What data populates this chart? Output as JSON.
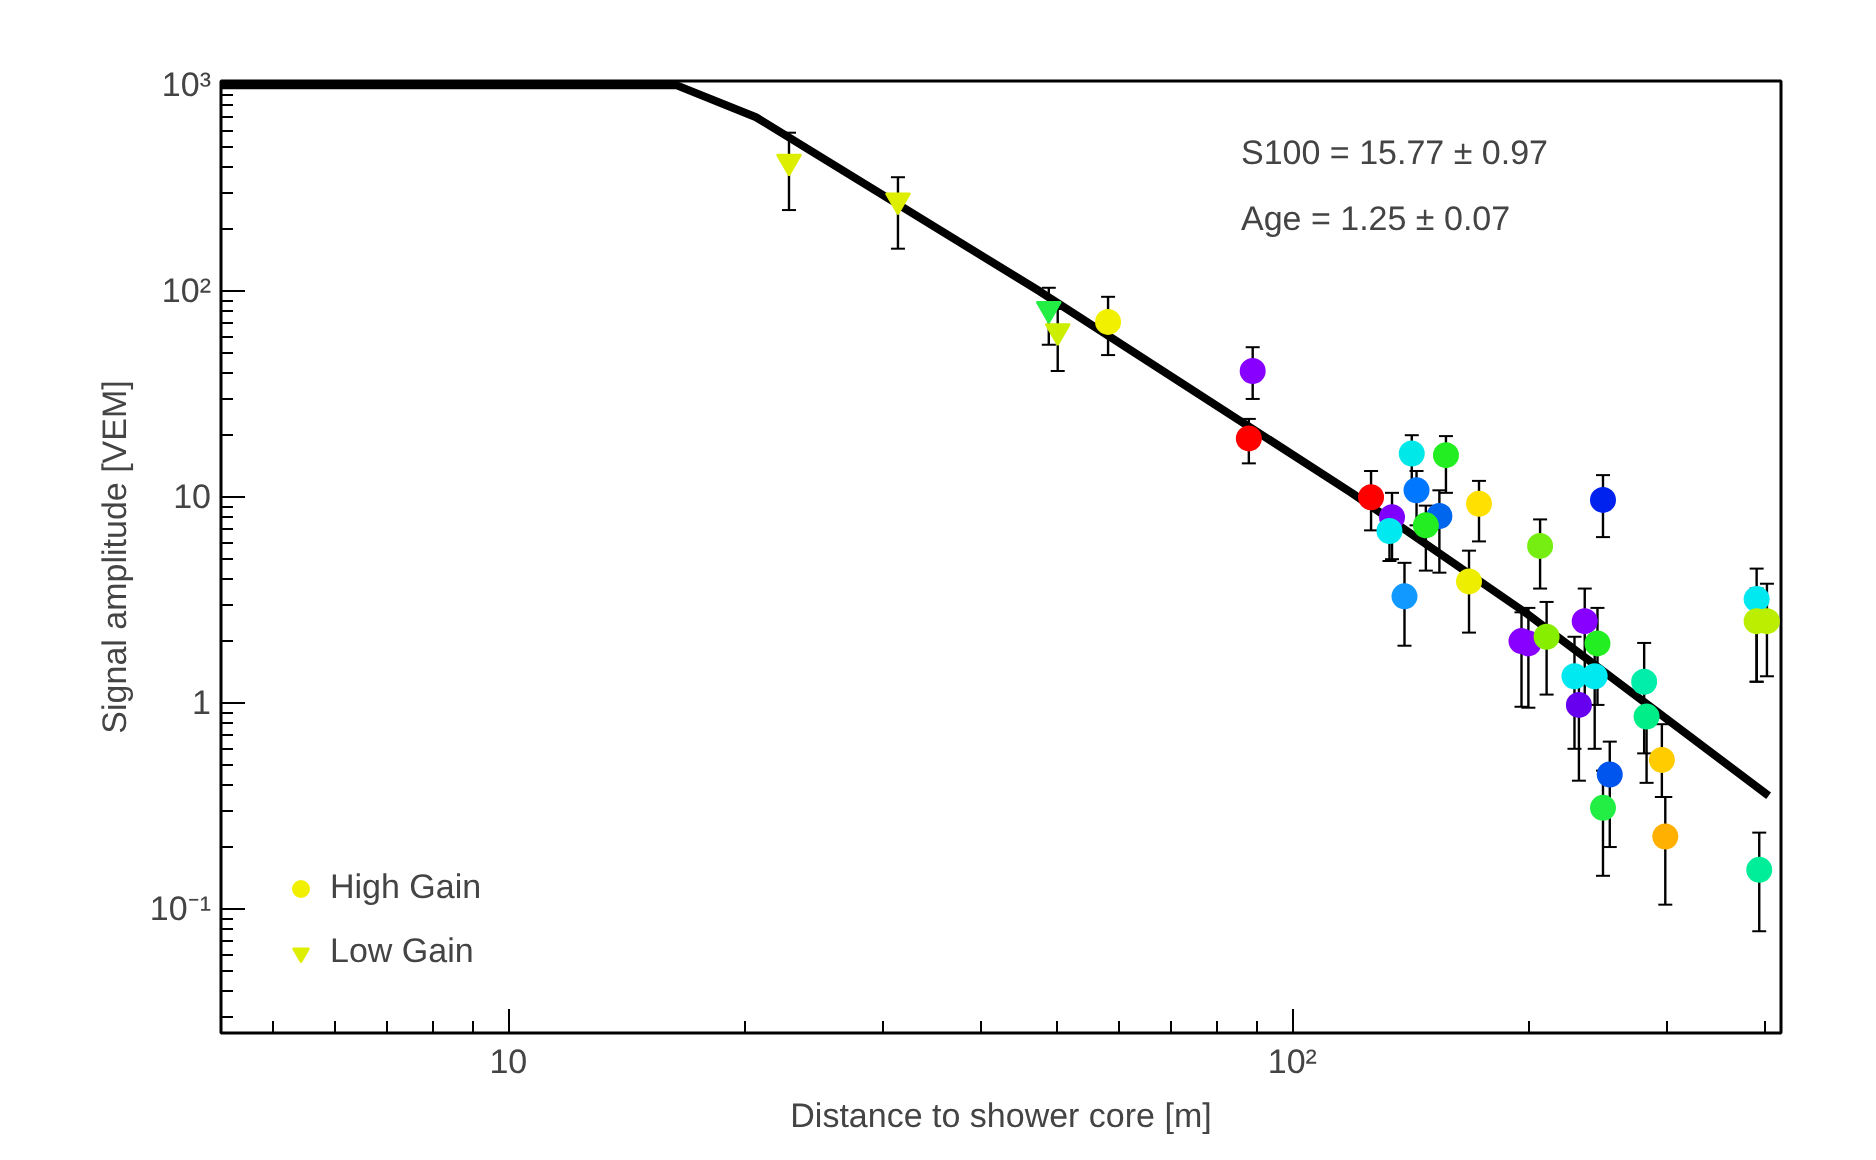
{
  "chart_data": {
    "type": "scatter",
    "xlabel": "Distance to shower core [m]",
    "ylabel": "Signal amplitude [VEM]",
    "log": "xy",
    "grid": false,
    "legend": "bottom left",
    "xlim": [
      4.3,
      420
    ],
    "ylim": [
      0.025,
      1050
    ],
    "xticks": [
      10,
      {
        "value": 100,
        "label": "10²"
      }
    ],
    "yticks": [
      {
        "value": 0.1,
        "label": "10⁻¹"
      },
      1,
      10,
      {
        "value": 100,
        "label": "10²"
      },
      {
        "value": 1000,
        "label": "10³"
      }
    ],
    "annotations": [
      "S100 =  15.77 ± 0.97",
      "Age  =  1.25 ± 0.07"
    ],
    "series": [
      {
        "type": "line",
        "color": "#000000",
        "marker": "none",
        "line_style": "solid",
        "x": [
          4.3,
          16.4,
          20.7,
          47.6,
          119,
          198,
          405
        ],
        "values": [
          1000,
          1000,
          700,
          100,
          10.5,
          2.76,
          0.355
        ]
      },
      {
        "name": "High Gain",
        "marker": "circle",
        "x": [
          58.2,
          89,
          88,
          126,
          134,
          133,
          142,
          157,
          144,
          154,
          148,
          139,
          173,
          168,
          207,
          249,
          196,
          200,
          211,
          236,
          245,
          229,
          243,
          232,
          254,
          249,
          281,
          283,
          296,
          299,
          391,
          391,
          403,
          394
        ],
        "values": [
          71,
          41,
          19.3,
          10,
          8,
          6.85,
          16.3,
          16,
          10.8,
          8.1,
          7.3,
          3.3,
          9.3,
          3.9,
          5.8,
          9.7,
          2,
          1.95,
          2.1,
          2.5,
          1.95,
          1.35,
          1.35,
          0.98,
          0.45,
          0.31,
          1.27,
          0.86,
          0.53,
          0.225,
          3.2,
          2.5,
          2.5,
          0.155
        ],
        "errors": [
          [
            49,
            94
          ],
          [
            30,
            53.5
          ],
          [
            14.6,
            24
          ],
          [
            6.9,
            13.4
          ],
          [
            5,
            10.5
          ],
          [
            4.9,
            8.5
          ],
          [
            11,
            20
          ],
          [
            10.5,
            19.8
          ],
          [
            7.3,
            13.4
          ],
          [
            4.3,
            10.8
          ],
          [
            4.4,
            9.1
          ],
          [
            1.9,
            4.8
          ],
          [
            6.1,
            12
          ],
          [
            2.2,
            5.5
          ],
          [
            3.6,
            7.8
          ],
          [
            6.4,
            12.8
          ],
          [
            0.96,
            2.76
          ],
          [
            0.95,
            2.9
          ],
          [
            1.1,
            3.1
          ],
          [
            0.98,
            3.6
          ],
          [
            0.98,
            2.9
          ],
          [
            0.6,
            2.1
          ],
          [
            0.6,
            2.1
          ],
          [
            0.42,
            1.3
          ],
          [
            0.2,
            0.65
          ],
          [
            0.145,
            0.47
          ],
          [
            0.57,
            1.96
          ],
          [
            0.41,
            0.86
          ],
          [
            0.35,
            0.79
          ],
          [
            0.105,
            0.35
          ],
          [
            1.27,
            4.5
          ],
          [
            1.27,
            3.6
          ],
          [
            1.35,
            3.8
          ],
          [
            0.078,
            0.235
          ]
        ],
        "colors": [
          "#f0f000",
          "#8800ff",
          "#ff0000",
          "#ff0000",
          "#8000ff",
          "#00e8f0",
          "#00e8e8",
          "#22ee22",
          "#0077ff",
          "#0066ee",
          "#22ee22",
          "#1199ff",
          "#ffe000",
          "#eeee00",
          "#77ee11",
          "#0022ee",
          "#8800ff",
          "#8800ff",
          "#88ee00",
          "#8800ff",
          "#22ee22",
          "#00e8f0",
          "#00e8f0",
          "#6600ee",
          "#0055ee",
          "#22ee44",
          "#00eeaa",
          "#00ee88",
          "#ffcc00",
          "#ffb000",
          "#00e8f0",
          "#bbee00",
          "#bbee00",
          "#00ee99"
        ]
      },
      {
        "name": "Low Gain",
        "marker": "triangle",
        "x": [
          22.8,
          31.4,
          48.9,
          50.2
        ],
        "values": [
          426,
          276,
          82,
          64
        ],
        "errors": [
          [
            248,
            589
          ],
          [
            161,
            358
          ],
          [
            55,
            104
          ],
          [
            41,
            82
          ]
        ],
        "colors": [
          "#ddee00",
          "#ddee00",
          "#22ee44",
          "#ccee00"
        ]
      }
    ]
  }
}
